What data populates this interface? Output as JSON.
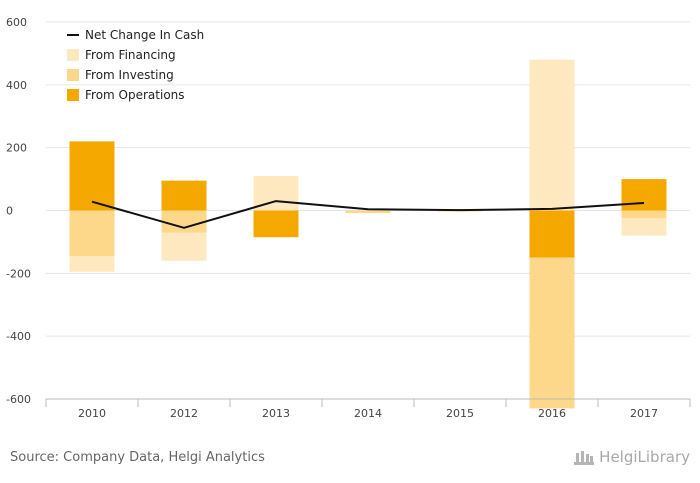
{
  "chart_data": {
    "type": "bar",
    "categories": [
      "2010",
      "2012",
      "2013",
      "2014",
      "2015",
      "2016",
      "2017"
    ],
    "series": [
      {
        "name": "From Operations",
        "kind": "bar",
        "color": "#f5a800",
        "values": [
          220,
          95,
          -85,
          0,
          0,
          -150,
          100
        ]
      },
      {
        "name": "From Investing",
        "kind": "bar",
        "color": "#fdd88a",
        "values": [
          -145,
          -70,
          0,
          -8,
          -2,
          -480,
          -25
        ]
      },
      {
        "name": "From Financing",
        "kind": "bar",
        "color": "#fee8bf",
        "values": [
          -50,
          -90,
          110,
          0,
          0,
          480,
          -55
        ]
      },
      {
        "name": "Net Change In Cash",
        "kind": "line",
        "color": "#111111",
        "values": [
          28,
          -55,
          30,
          4,
          1,
          5,
          24
        ]
      }
    ],
    "legend_order": [
      "Net Change In Cash",
      "From Financing",
      "From Investing",
      "From Operations"
    ],
    "legend_position": "top-left",
    "ylim": [
      -600,
      600
    ],
    "yticks": [
      600,
      400,
      200,
      0,
      -200,
      -400,
      -600
    ],
    "grid": true,
    "title": "",
    "xlabel": "",
    "ylabel": ""
  },
  "footer": {
    "source": "Source: Company Data, Helgi Analytics",
    "brand": "HelgiLibrary"
  }
}
